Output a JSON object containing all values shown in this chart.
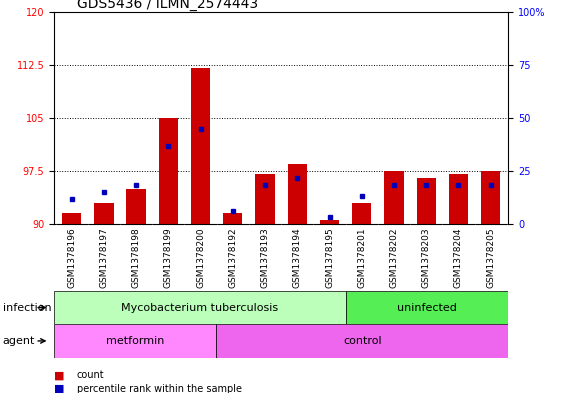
{
  "title": "GDS5436 / ILMN_2574443",
  "samples": [
    "GSM1378196",
    "GSM1378197",
    "GSM1378198",
    "GSM1378199",
    "GSM1378200",
    "GSM1378192",
    "GSM1378193",
    "GSM1378194",
    "GSM1378195",
    "GSM1378201",
    "GSM1378202",
    "GSM1378203",
    "GSM1378204",
    "GSM1378205"
  ],
  "red_values": [
    91.5,
    93.0,
    95.0,
    105.0,
    112.0,
    91.5,
    97.0,
    98.5,
    90.5,
    93.0,
    97.5,
    96.5,
    97.0,
    97.5
  ],
  "blue_values": [
    93.5,
    94.5,
    95.5,
    101.0,
    103.5,
    91.8,
    95.5,
    96.5,
    91.0,
    94.0,
    95.5,
    95.5,
    95.5,
    95.5
  ],
  "ymin": 90,
  "ymax": 120,
  "yticks": [
    90,
    97.5,
    105,
    112.5,
    120
  ],
  "ytick_labels": [
    "90",
    "97.5",
    "105",
    "112.5",
    "120"
  ],
  "right_yticks_pct": [
    0,
    25,
    50,
    75,
    100
  ],
  "right_ytick_labels": [
    "0",
    "25",
    "50",
    "75",
    "100%"
  ],
  "bar_color": "#cc0000",
  "blue_color": "#0000bb",
  "infection_groups": [
    {
      "label": "Mycobacterium tuberculosis",
      "start": 0,
      "end": 9,
      "color": "#bbffbb"
    },
    {
      "label": "uninfected",
      "start": 9,
      "end": 14,
      "color": "#55ee55"
    }
  ],
  "agent_groups": [
    {
      "label": "metformin",
      "start": 0,
      "end": 5,
      "color": "#ff88ff"
    },
    {
      "label": "control",
      "start": 5,
      "end": 14,
      "color": "#ee66ee"
    }
  ],
  "legend_count_label": "count",
  "legend_pct_label": "percentile rank within the sample",
  "infection_label": "infection",
  "agent_label": "agent",
  "title_fontsize": 10,
  "tick_fontsize": 7,
  "label_fontsize": 8,
  "annotation_fontsize": 8
}
